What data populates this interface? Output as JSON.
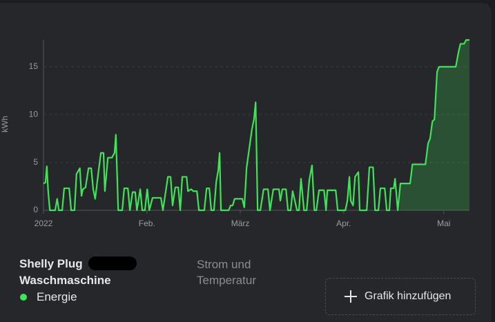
{
  "chart_data": {
    "type": "line",
    "y_label": "kWh",
    "x": [
      0,
      0.6,
      1.0,
      1.4,
      1.9,
      3.5,
      4.1,
      4.6,
      5.6,
      6.2,
      7.7,
      8.3,
      9.3,
      9.9,
      10.9,
      11.4,
      11.8,
      12.6,
      13.5,
      14.3,
      14.9,
      15.5,
      16.4,
      17.2,
      18.0,
      18.4,
      19.3,
      20.5,
      21.3,
      21.7,
      22.4,
      23.6,
      24.2,
      25.3,
      25.9,
      26.7,
      27.5,
      28.0,
      29.0,
      29.6,
      30.4,
      31.1,
      31.7,
      32.7,
      35.2,
      35.8,
      37.3,
      38.1,
      38.7,
      39.5,
      40.4,
      41.0,
      41.6,
      42.9,
      43.3,
      44.3,
      44.9,
      46.0,
      46.6,
      48.2,
      48.9,
      49.7,
      50.3,
      51.1,
      51.8,
      52.4,
      52.8,
      53.2,
      55.5,
      56.1,
      56.7,
      57.3,
      59.6,
      60.2,
      60.9,
      61.7,
      62.5,
      63.1,
      63.6,
      64.2,
      65.0,
      66.0,
      67.3,
      67.9,
      68.9,
      70.6,
      71.0,
      71.6,
      72.7,
      73.3,
      74.1,
      74.7,
      76.0,
      76.6,
      77.2,
      78.1,
      78.9,
      79.7,
      80.5,
      81.2,
      81.8,
      82.6,
      84.1,
      84.7,
      85.1,
      87.6,
      88.2,
      90.5,
      91.1,
      91.7,
      92.1,
      92.8,
      93.4,
      94.4,
      94.8,
      96.9,
      97.7,
      98.8,
      99.4,
      100.4,
      101.0,
      102.3,
      102.9,
      103.7,
      104.1,
      105.0,
      105.4,
      106.2,
      107.0,
      109.9,
      110.6,
      114.5,
      115.3,
      115.9,
      116.6,
      117.2,
      118.0,
      118.6,
      123.6,
      124.4,
      125.0,
      126.1,
      126.7,
      127.7
    ],
    "series": [
      {
        "name": "Energie",
        "color": "#3ee556",
        "values": [
          2.8,
          2.9,
          4.6,
          2.0,
          0,
          0,
          1.2,
          0,
          0,
          2.3,
          2.3,
          0,
          0,
          3.8,
          4.4,
          1.5,
          2.2,
          2.4,
          4.4,
          4.4,
          2.2,
          1.2,
          3.8,
          6.0,
          6.0,
          2.0,
          5.5,
          5.5,
          6.0,
          7.9,
          0,
          0,
          2.3,
          2.3,
          0,
          1.9,
          1.9,
          0,
          2.2,
          0,
          0,
          2.2,
          0,
          1.3,
          1.3,
          0,
          3.5,
          3.5,
          0.5,
          2.4,
          2.4,
          0,
          3.5,
          3.5,
          2.0,
          2.2,
          2.0,
          2.0,
          0,
          0,
          2.3,
          2.3,
          0,
          0,
          3.0,
          4.2,
          6.0,
          0,
          0,
          0.5,
          0.5,
          1.2,
          1.2,
          0.3,
          4.5,
          6.5,
          8.5,
          9.5,
          11.3,
          0,
          0,
          2.2,
          2.2,
          0,
          2.2,
          2.2,
          1.0,
          2.2,
          2.2,
          0,
          0,
          2.0,
          0,
          0,
          3.3,
          0,
          0,
          3.2,
          4.7,
          0,
          0,
          2.1,
          2.1,
          0,
          2.1,
          2.1,
          0,
          0,
          1.0,
          3.5,
          1.0,
          0.5,
          3.5,
          4.0,
          0,
          0,
          4.5,
          4.5,
          0,
          0,
          2.3,
          2.3,
          0,
          0,
          2.3,
          2.3,
          3.3,
          0,
          2.8,
          2.8,
          4.8,
          4.8,
          7.0,
          7.5,
          9.3,
          9.5,
          14.5,
          15.0,
          15.0,
          16.5,
          17.4,
          17.4,
          17.8,
          17.8
        ]
      }
    ],
    "xlim": [
      0,
      127.7
    ],
    "xticks": [
      {
        "value": 0,
        "label": "2022"
      },
      {
        "value": 31,
        "label": "Feb."
      },
      {
        "value": 59,
        "label": "März"
      },
      {
        "value": 90,
        "label": "Apr."
      },
      {
        "value": 120,
        "label": "Mai"
      }
    ],
    "ylim": [
      0,
      17.8
    ],
    "yticks": [
      0,
      5,
      10,
      15
    ],
    "grid": true
  },
  "card": {
    "device": "Shelly Plug",
    "name": "Waschmaschine",
    "tab": "Strom und Temperatur",
    "button": "Grafik hinzufügen"
  }
}
